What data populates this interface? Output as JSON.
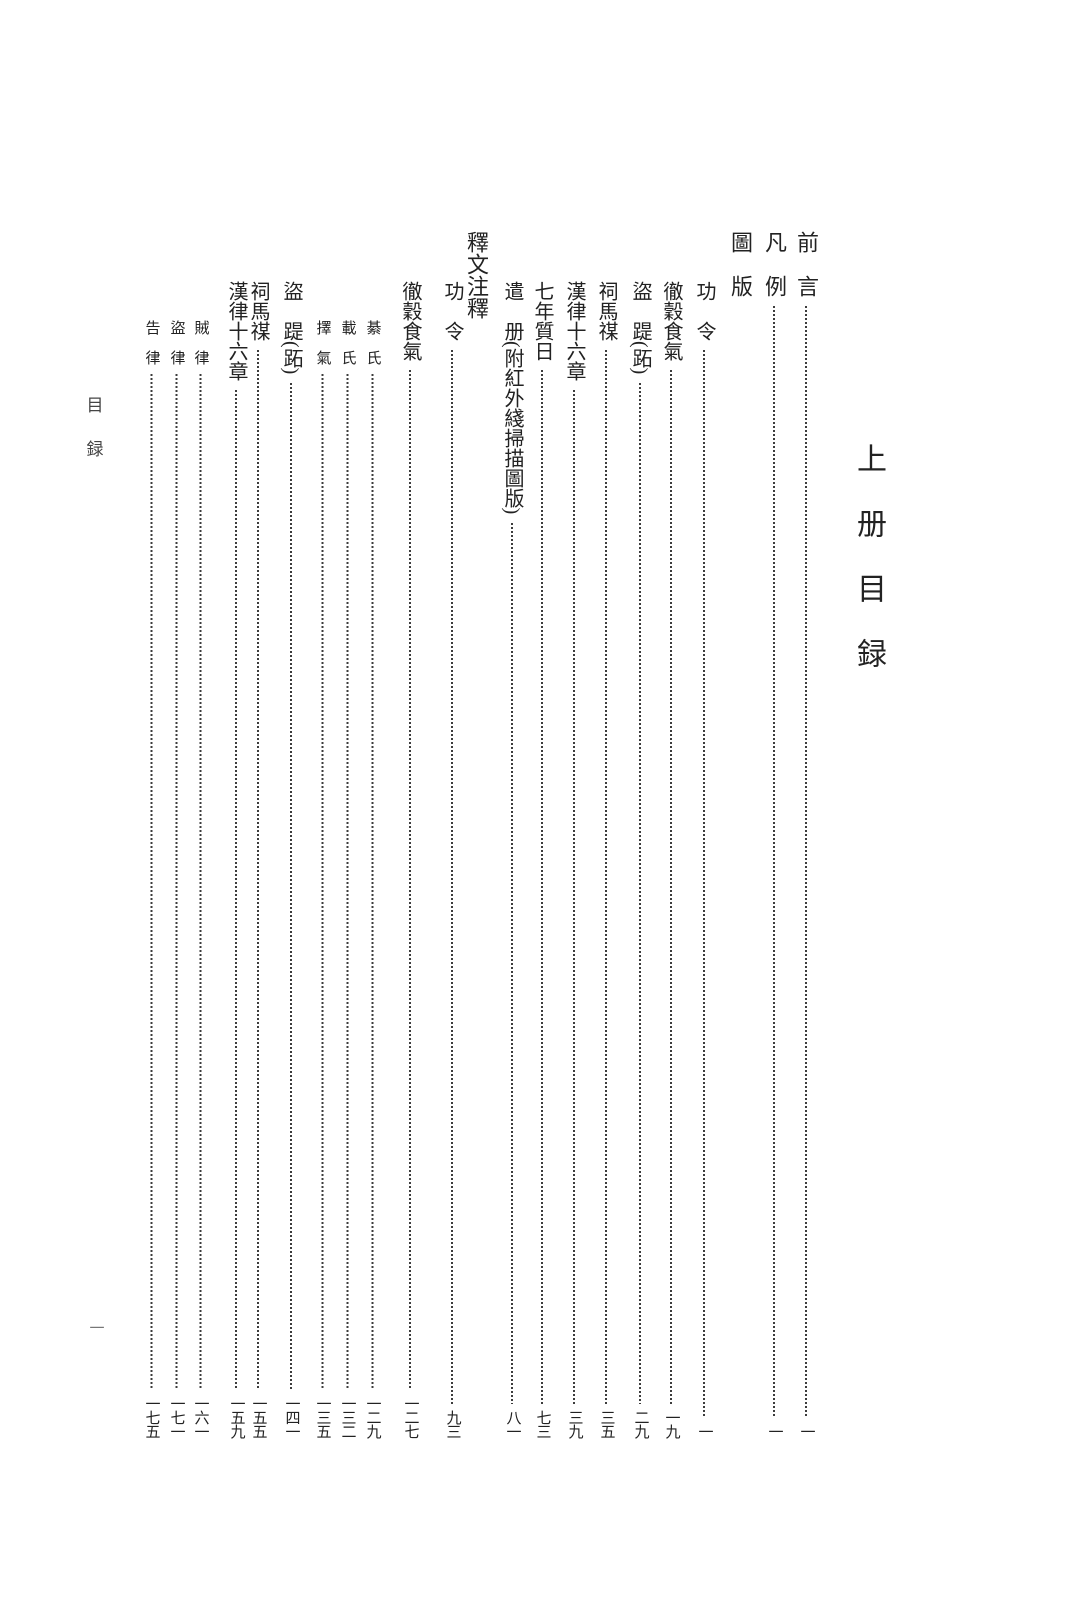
{
  "page": {
    "big_title": "上册目録",
    "margin_header": "目録",
    "margin_page_number": "一"
  },
  "colors": {
    "text": "#222222",
    "leader_dots": "#3c3c3c",
    "folio": "#777777"
  },
  "toc": {
    "entries": [
      {
        "label": "前　言",
        "page": "一",
        "level": "top"
      },
      {
        "label": "凡　例",
        "page": "一",
        "level": "top"
      },
      {
        "label": "圖　版",
        "page": "",
        "level": "head"
      },
      {
        "label": "功　令",
        "page": "一",
        "level": "item"
      },
      {
        "label": "徹穀食氣",
        "page": "一九",
        "level": "item"
      },
      {
        "label": "盜　踶(跖)",
        "page": "二九",
        "level": "item"
      },
      {
        "label": "祠馬禖",
        "page": "三五",
        "level": "item"
      },
      {
        "label": "漢律十六章",
        "page": "三九",
        "level": "item"
      },
      {
        "label": "七年質日",
        "page": "七三",
        "level": "item"
      },
      {
        "label": "遣　册(附紅外綫掃描圖版)",
        "page": "八一",
        "level": "item"
      },
      {
        "label": "釋文注釋",
        "page": "",
        "level": "head"
      },
      {
        "label": "功　令",
        "page": "九三",
        "level": "item"
      },
      {
        "label": "徹穀食氣",
        "page": "一二七",
        "level": "item"
      },
      {
        "label": "綦　氏",
        "page": "一二九",
        "level": "sub"
      },
      {
        "label": "載　氏",
        "page": "一三二",
        "level": "sub"
      },
      {
        "label": "擇　氣",
        "page": "一三五",
        "level": "sub"
      },
      {
        "label": "盜　踶(跖)",
        "page": "一四一",
        "level": "item"
      },
      {
        "label": "祠馬禖",
        "page": "一五五",
        "level": "item"
      },
      {
        "label": "漢律十六章",
        "page": "一五九",
        "level": "item"
      },
      {
        "label": "賊　律",
        "page": "一六一",
        "level": "sub"
      },
      {
        "label": "盜　律",
        "page": "一七一",
        "level": "sub"
      },
      {
        "label": "告　律",
        "page": "一七五",
        "level": "sub"
      }
    ]
  }
}
